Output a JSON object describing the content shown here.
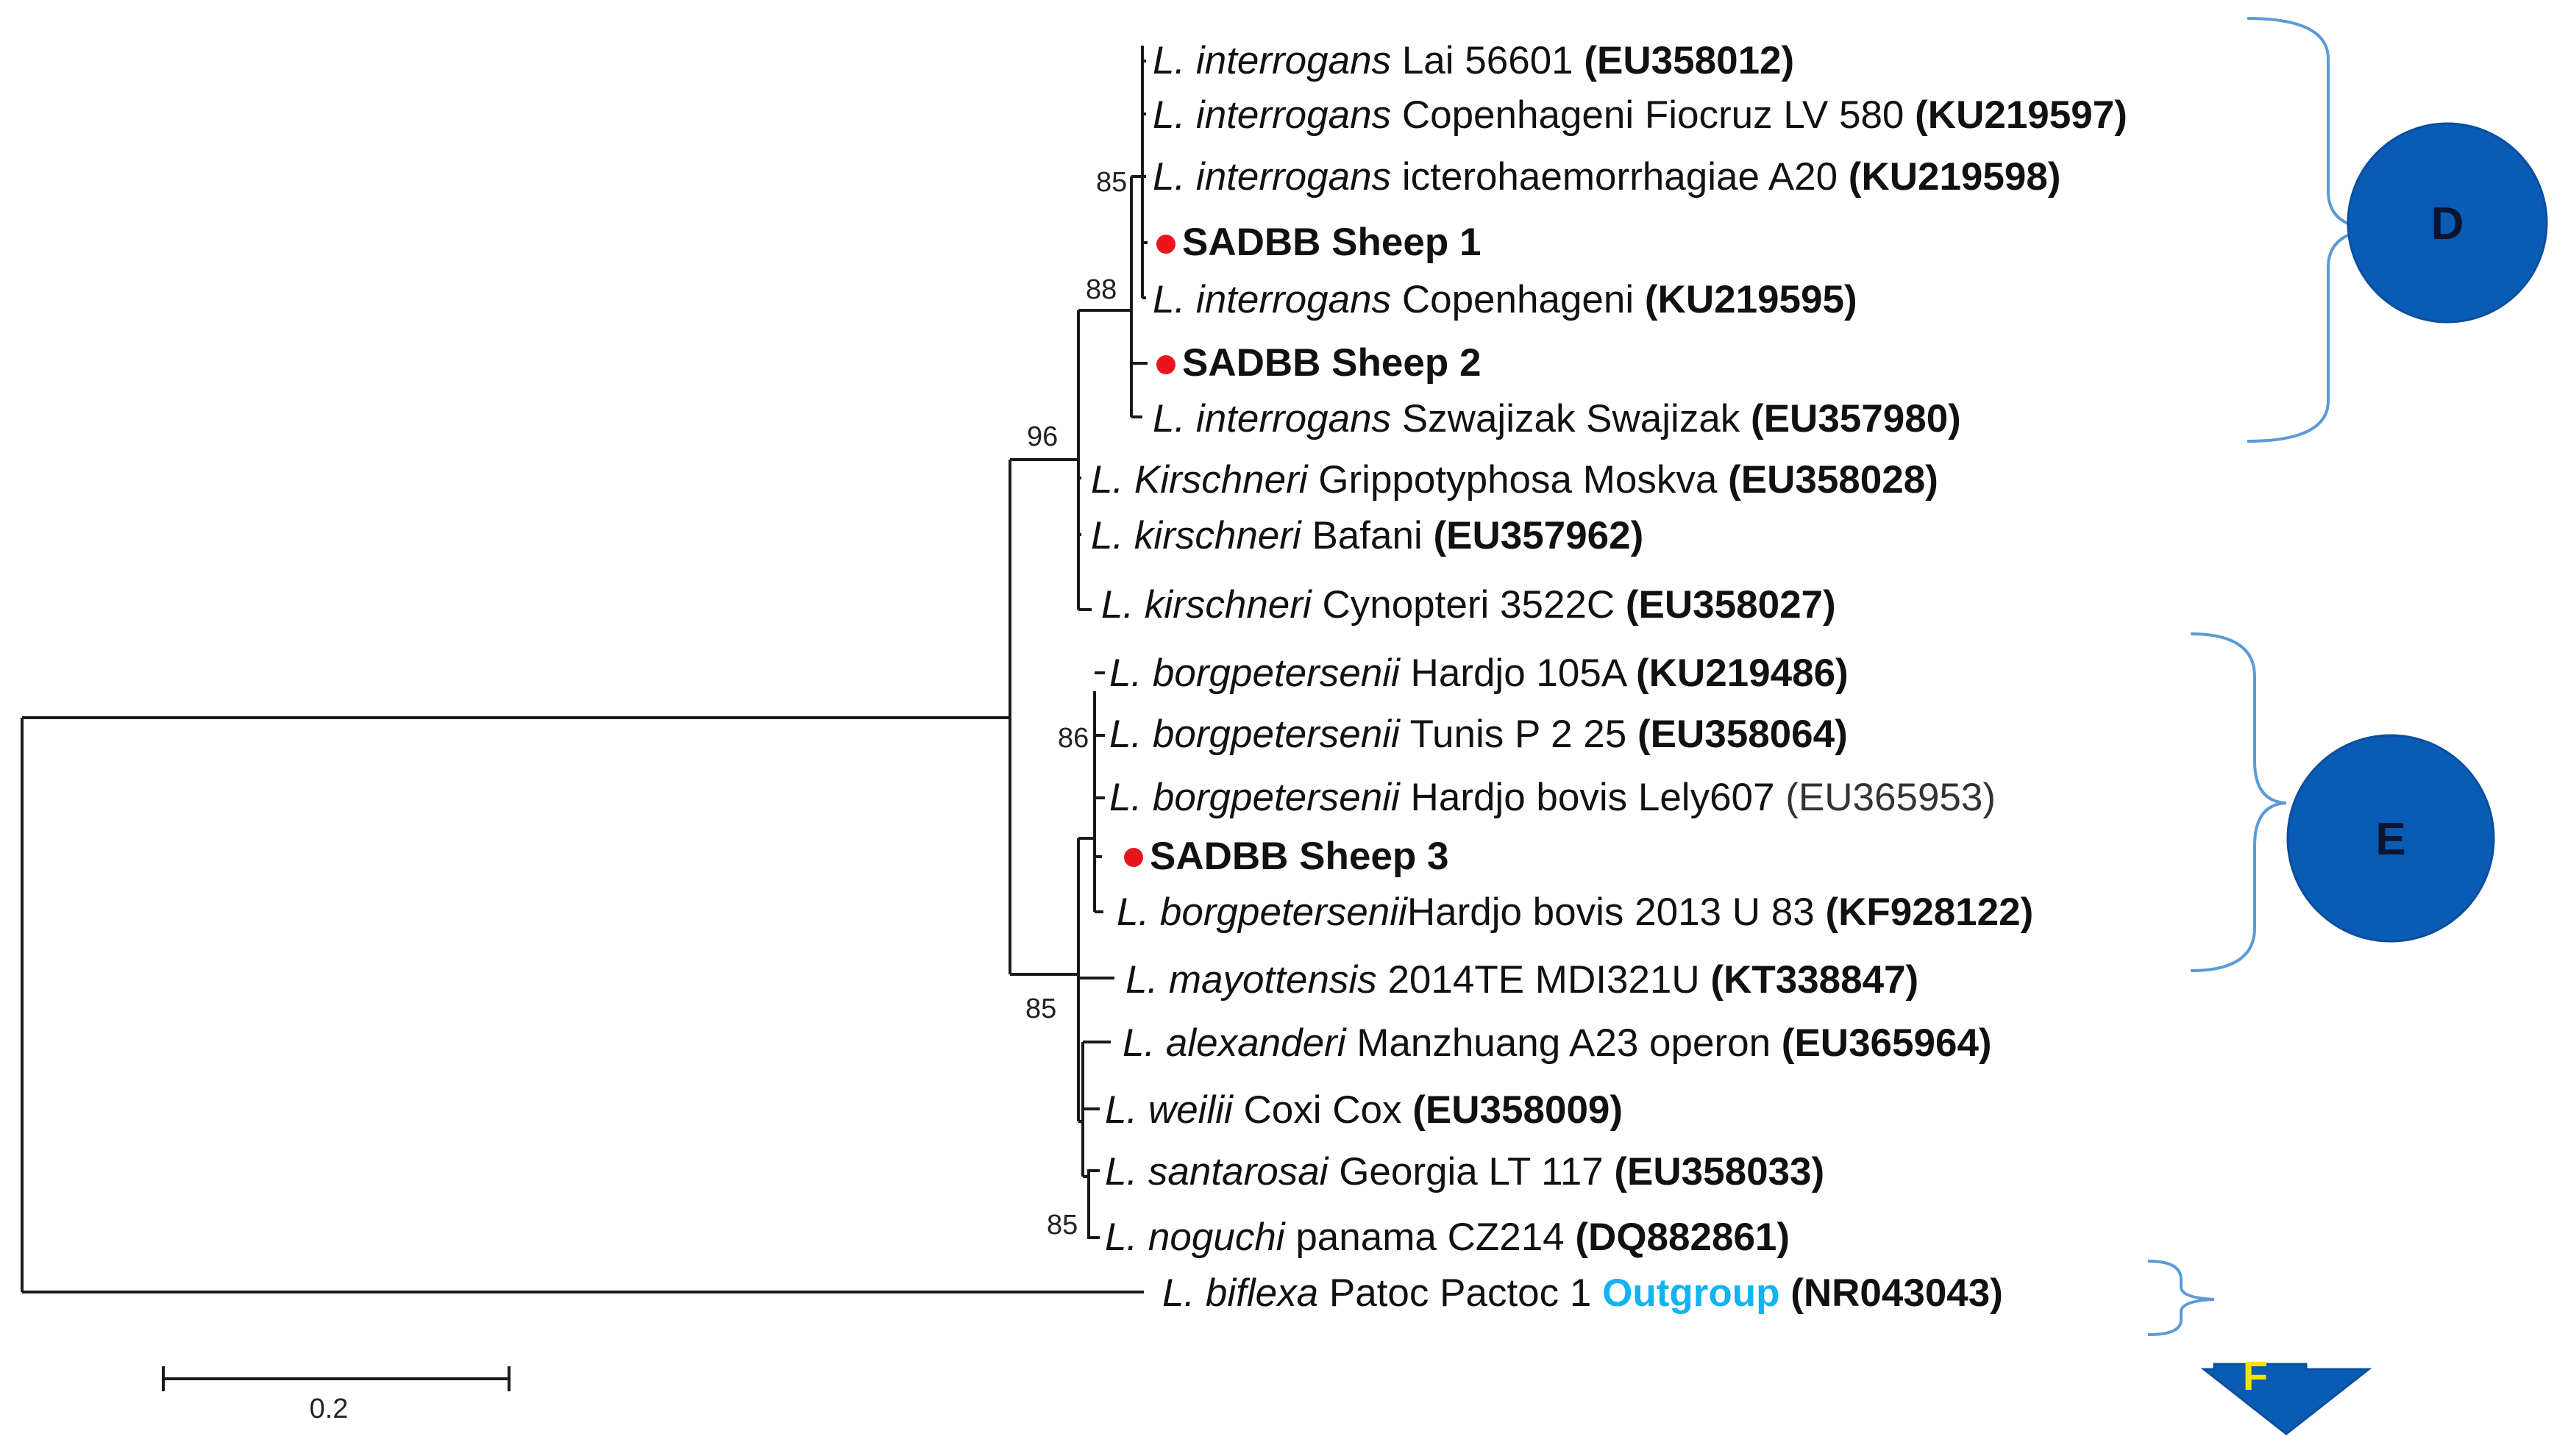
{
  "taxa": [
    {
      "genus": "L. interrogans",
      "strain": "Lai 56601",
      "accession": "(EU358012)",
      "accession_bold": true,
      "own_sample": false
    },
    {
      "genus": "L. interrogans",
      "strain": "Copenhageni Fiocruz LV 580",
      "accession": "(KU219597)",
      "accession_bold": true,
      "own_sample": false
    },
    {
      "genus": "L. interrogans",
      "strain": "icterohaemorrhagiae A20",
      "accession": "(KU219598)",
      "accession_bold": true,
      "own_sample": false
    },
    {
      "genus": "",
      "strain": "SADBB Sheep 1",
      "accession": "",
      "accession_bold": false,
      "own_sample": true
    },
    {
      "genus": "L. interrogans",
      "strain": "Copenhageni",
      "accession": "(KU219595)",
      "accession_bold": true,
      "own_sample": false
    },
    {
      "genus": "",
      "strain": "SADBB Sheep 2",
      "accession": "",
      "accession_bold": false,
      "own_sample": true
    },
    {
      "genus": "L. interrogans",
      "strain": "Szwajizak Swajizak",
      "accession": "(EU357980)",
      "accession_bold": true,
      "own_sample": false
    },
    {
      "genus": "L. Kirschneri",
      "strain": "Grippotyphosa Moskva",
      "accession": "(EU358028)",
      "accession_bold": true,
      "own_sample": false
    },
    {
      "genus": "L. kirschneri",
      "strain": "Bafani",
      "accession": "(EU357962)",
      "accession_bold": true,
      "own_sample": false
    },
    {
      "genus": "L. kirschneri",
      "strain": "Cynopteri 3522C",
      "accession": "(EU358027)",
      "accession_bold": true,
      "own_sample": false
    },
    {
      "genus": "L. borgpetersenii",
      "strain": "Hardjo 105A",
      "accession": "(KU219486)",
      "accession_bold": true,
      "own_sample": false
    },
    {
      "genus": "L. borgpetersenii",
      "strain": "Tunis P 2 25",
      "accession": "(EU358064)",
      "accession_bold": true,
      "own_sample": false
    },
    {
      "genus": "L. borgpetersenii",
      "strain": "Hardjo bovis Lely607",
      "accession": "(EU365953)",
      "accession_bold": false,
      "own_sample": false
    },
    {
      "genus": "",
      "strain": "SADBB Sheep 3",
      "accession": "",
      "accession_bold": false,
      "own_sample": true
    },
    {
      "genus": "L. borgpetersenii",
      "strain": "Hardjo bovis 2013 U 83",
      "accession": "(KF928122)",
      "accession_bold": true,
      "own_sample": false
    },
    {
      "genus": "L. mayottensis",
      "strain": "2014TE MDI321U",
      "accession": "(KT338847)",
      "accession_bold": true,
      "own_sample": false
    },
    {
      "genus": "L. alexanderi",
      "strain": "Manzhuang A23 operon",
      "accession": "(EU365964)",
      "accession_bold": true,
      "own_sample": false
    },
    {
      "genus": "L. weilii",
      "strain": "Coxi Cox",
      "accession": "(EU358009)",
      "accession_bold": true,
      "own_sample": false
    },
    {
      "genus": "L. santarosai",
      "strain": "Georgia LT 117",
      "accession": "(EU358033)",
      "accession_bold": true,
      "own_sample": false
    },
    {
      "genus": "L. noguchi",
      "strain": "panama CZ214",
      "accession": "(DQ882861)",
      "accession_bold": true,
      "own_sample": false
    },
    {
      "genus": "L. biflexa",
      "strain": "Patoc Pactoc 1",
      "extra": "Outgroup",
      "accession": "(NR043043)",
      "accession_bold": true,
      "own_sample": false
    }
  ],
  "bootstrap": [
    "85",
    "88",
    "96",
    "86",
    "85",
    "85"
  ],
  "clades": {
    "d": "D",
    "e": "E",
    "f": "F"
  },
  "scale_bar": "0.2",
  "colors": {
    "own_sample_marker": "#e8161c",
    "outgroup_text": "#11b4f0",
    "bracket": "#5b9bd5",
    "circle": "#0a5bb5",
    "arrow": "#0a5bb5",
    "arrow_text": "#f5e400"
  }
}
